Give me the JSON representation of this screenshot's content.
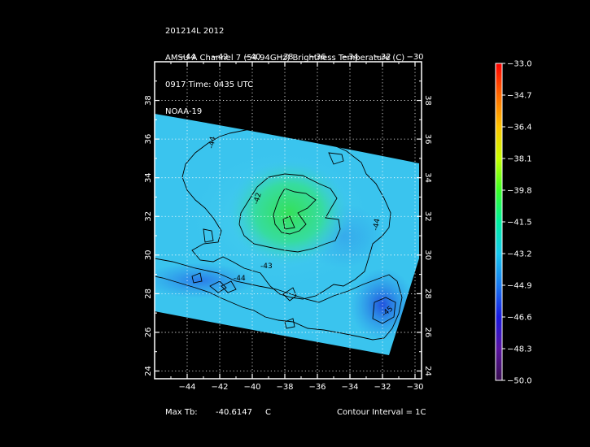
{
  "header": {
    "line1": "201214L 2012",
    "line2": "AMSU-A Channel 7 (54.94GHz) Brightness Temperature (C)",
    "line3": "0917 Time: 0435 UTC",
    "line4": "NOAA-19"
  },
  "footer": {
    "max_tb_label": "Max Tb:",
    "max_tb_value": "-40.6147",
    "max_tb_unit": "C",
    "contour_interval": "Contour Interval = 1C"
  },
  "colors": {
    "background": "#000000",
    "swath_base": "#3ac4ee",
    "warm_core": "#35e05a",
    "cold_region": "#2a5ce0",
    "contour_line": "#000000",
    "grid": "#ffffff"
  },
  "chart_data": {
    "type": "heatmap",
    "title": "AMSU-A Channel 7 (54.94GHz) Brightness Temperature (C)",
    "x_axis": {
      "label": "",
      "ticks": [
        -44,
        -42,
        -40,
        -38,
        -36,
        -34,
        -32,
        -30
      ],
      "range": [
        -46,
        -29.6
      ]
    },
    "y_axis": {
      "label": "",
      "ticks": [
        24,
        26,
        28,
        30,
        32,
        34,
        36,
        38
      ],
      "range": [
        23.6,
        40
      ]
    },
    "grid": true,
    "max_value": -40.6147,
    "contour_interval": 1,
    "contour_labels": [
      "-44",
      "-42",
      "-43",
      "-44",
      "-44",
      "-45"
    ],
    "colorbar": {
      "min": -50.0,
      "max": -33.0,
      "labels": [
        "-33.0",
        "-34.7",
        "-36.4",
        "-38.1",
        "-39.8",
        "-41.5",
        "-43.2",
        "-44.9",
        "-46.6",
        "-48.3",
        "-50.0"
      ],
      "colors": [
        "#ff0000",
        "#ff6a00",
        "#ffc400",
        "#c8ff00",
        "#3cff28",
        "#00f0a0",
        "#18c8f0",
        "#1a7af0",
        "#1a1ae0",
        "#5a14a0",
        "#3a1050"
      ]
    }
  }
}
